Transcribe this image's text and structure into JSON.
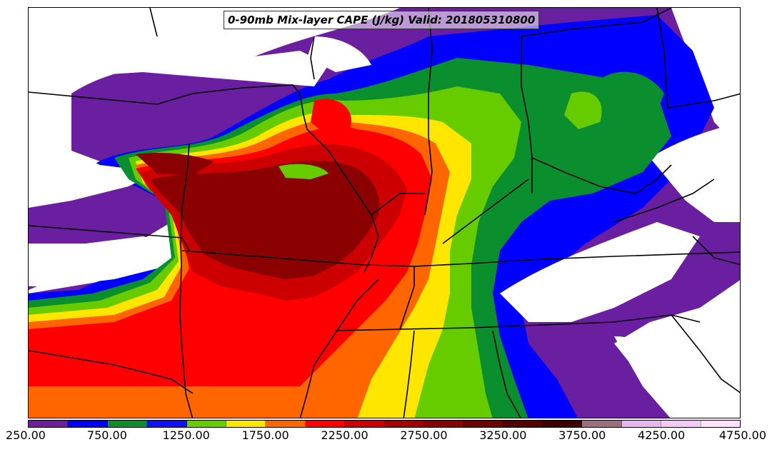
{
  "title": "0-90mb Mix-layer CAPE (J/kg) Valid: 201805310800",
  "colorbar": {
    "tick_labels": [
      "250.00",
      "750.00",
      "1250.00",
      "1750.00",
      "2250.00",
      "2750.00",
      "3250.00",
      "3750.00",
      "4250.00",
      "4750.00"
    ],
    "colors": [
      "#6a1fa0",
      "#0000ff",
      "#0b8f2e",
      "#1010ff",
      "#66cc00",
      "#ffe600",
      "#ff6600",
      "#ff0000",
      "#cc0000",
      "#a30000",
      "#8b0000",
      "#6e0000",
      "#520000",
      "#3a0000",
      "#9c6f7e",
      "#e6b6ee",
      "#f2caf5",
      "#fbe2fb"
    ]
  },
  "colors": {
    "land_none": "#ffffff",
    "border": "#000000"
  }
}
